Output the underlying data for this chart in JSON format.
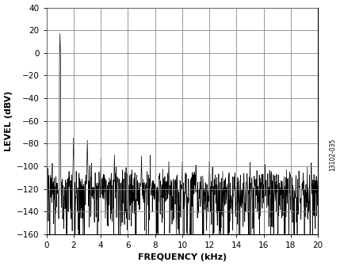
{
  "title": "",
  "xlabel": "FREQUENCY (kHz)",
  "ylabel": "LEVEL (dBV)",
  "xlim": [
    0,
    20
  ],
  "ylim": [
    -160,
    40
  ],
  "xticks": [
    0,
    2,
    4,
    6,
    8,
    10,
    12,
    14,
    16,
    18,
    20
  ],
  "yticks": [
    -160,
    -140,
    -120,
    -100,
    -80,
    -60,
    -40,
    -20,
    0,
    20,
    40
  ],
  "watermark": "13102-035",
  "background_color": "#ffffff",
  "grid_color": "#888888",
  "line_color": "#000000",
  "noise_floor_mean": -110,
  "noise_floor_std": 6,
  "noise_spike_scale": 18,
  "harmonics": [
    {
      "freq": 1.0,
      "level": 17
    },
    {
      "freq": 2.0,
      "level": -75
    },
    {
      "freq": 3.0,
      "level": -77
    },
    {
      "freq": 4.0,
      "level": -93
    },
    {
      "freq": 5.0,
      "level": -90
    },
    {
      "freq": 7.0,
      "level": -91
    },
    {
      "freq": 9.0,
      "level": -96
    },
    {
      "freq": 10.0,
      "level": -96
    },
    {
      "freq": 11.0,
      "level": -99
    },
    {
      "freq": 12.0,
      "level": -96
    },
    {
      "freq": 19.5,
      "level": -97
    }
  ],
  "num_points": 1024,
  "freq_max_khz": 20.0
}
